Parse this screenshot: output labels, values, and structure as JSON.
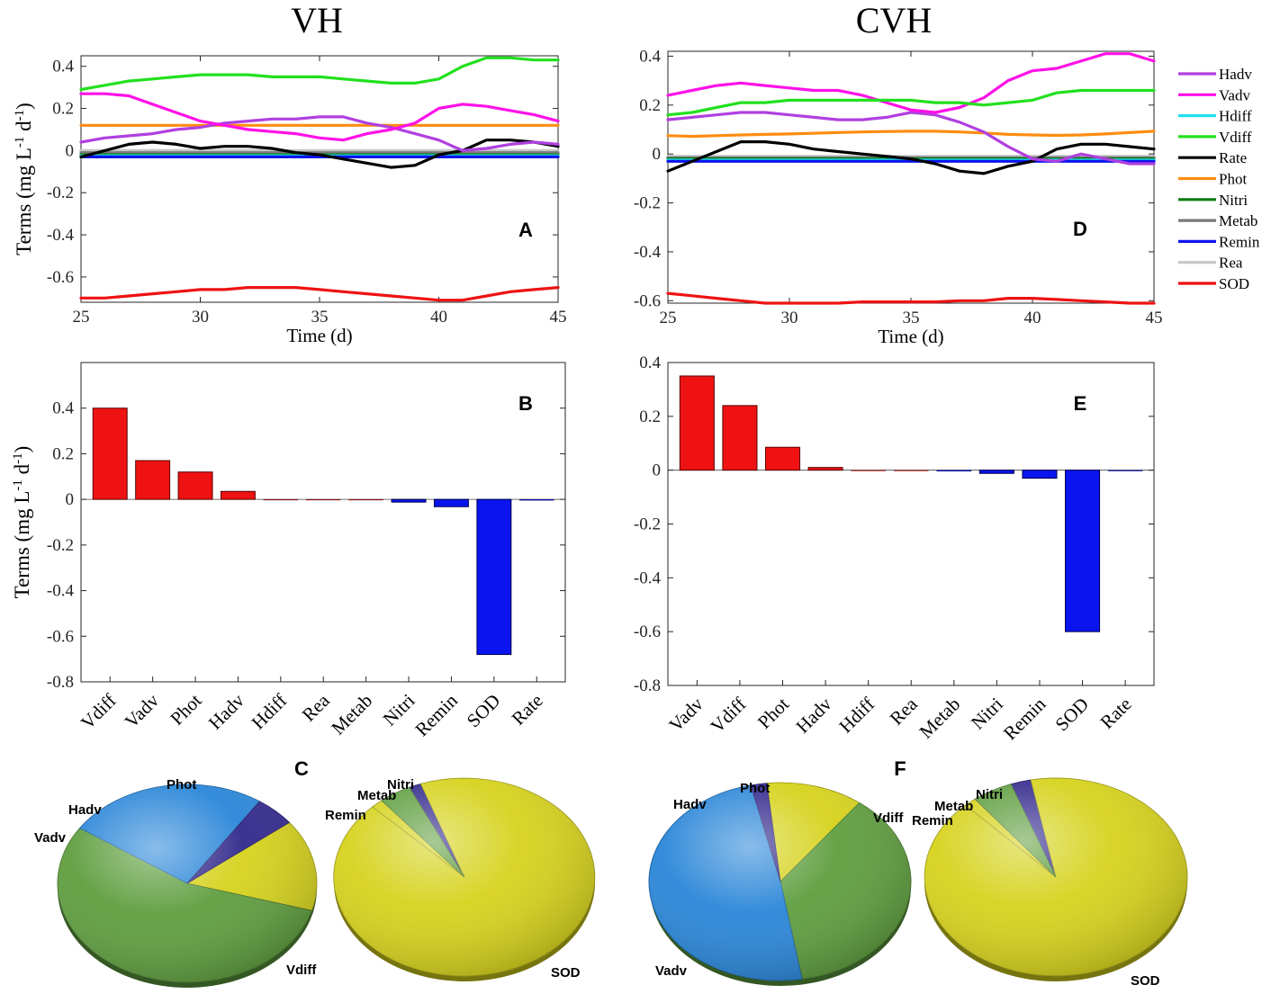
{
  "titles": {
    "left": "VH",
    "right": "CVH"
  },
  "panel_letters": {
    "A": "A",
    "B": "B",
    "C": "C",
    "D": "D",
    "E": "E",
    "F": "F"
  },
  "legend": {
    "items": [
      {
        "name": "Hadv",
        "color": "#b040e0"
      },
      {
        "name": "Vadv",
        "color": "#ff10e8"
      },
      {
        "name": "Hdiff",
        "color": "#22e0f0"
      },
      {
        "name": "Vdiff",
        "color": "#22e01e"
      },
      {
        "name": "Rate",
        "color": "#000000"
      },
      {
        "name": "Phot",
        "color": "#ff8c10"
      },
      {
        "name": "Nitri",
        "color": "#0a7d10"
      },
      {
        "name": "Metab",
        "color": "#7a7a7a"
      },
      {
        "name": "Remin",
        "color": "#0a14ee"
      },
      {
        "name": "Rea",
        "color": "#c6c6c6"
      },
      {
        "name": "SOD",
        "color": "#ee1212"
      }
    ]
  },
  "chart_data": [
    {
      "id": "A",
      "type": "line",
      "title": "",
      "xlabel": "Time (d)",
      "ylabel": "Terms (mg L-1 d-1)",
      "xlim": [
        25,
        45
      ],
      "ylim": [
        -0.72,
        0.45
      ],
      "xticks": [
        25,
        30,
        35,
        40,
        45
      ],
      "yticks": [
        0.4,
        0.2,
        0,
        -0.2,
        -0.4,
        -0.6
      ],
      "x": [
        25,
        26,
        27,
        28,
        29,
        30,
        31,
        32,
        33,
        34,
        35,
        36,
        37,
        38,
        39,
        40,
        41,
        42,
        43,
        44,
        45
      ],
      "series": [
        {
          "name": "Rea",
          "values": [
            0,
            0,
            0,
            0,
            0,
            0,
            0,
            0,
            0,
            0,
            0,
            0,
            0,
            0,
            0,
            0,
            0,
            0,
            0,
            0,
            0
          ]
        },
        {
          "name": "Metab",
          "values": [
            -0.01,
            -0.01,
            -0.01,
            -0.01,
            -0.01,
            -0.01,
            -0.01,
            -0.01,
            -0.01,
            -0.01,
            -0.01,
            -0.01,
            -0.01,
            -0.01,
            -0.01,
            -0.01,
            -0.01,
            -0.01,
            -0.01,
            -0.01,
            -0.01
          ]
        },
        {
          "name": "Nitri",
          "values": [
            -0.02,
            -0.02,
            -0.02,
            -0.02,
            -0.02,
            -0.02,
            -0.02,
            -0.02,
            -0.02,
            -0.02,
            -0.02,
            -0.02,
            -0.02,
            -0.02,
            -0.02,
            -0.02,
            -0.02,
            -0.02,
            -0.02,
            -0.02,
            -0.02
          ]
        },
        {
          "name": "Hdiff",
          "values": [
            -0.025,
            -0.025,
            -0.025,
            -0.025,
            -0.025,
            -0.025,
            -0.025,
            -0.025,
            -0.025,
            -0.025,
            -0.025,
            -0.025,
            -0.025,
            -0.025,
            -0.025,
            -0.025,
            -0.025,
            -0.025,
            -0.025,
            -0.025,
            -0.025
          ]
        },
        {
          "name": "Remin",
          "values": [
            -0.03,
            -0.03,
            -0.03,
            -0.03,
            -0.03,
            -0.03,
            -0.03,
            -0.03,
            -0.03,
            -0.03,
            -0.03,
            -0.03,
            -0.03,
            -0.03,
            -0.03,
            -0.03,
            -0.03,
            -0.03,
            -0.03,
            -0.03,
            -0.03
          ]
        },
        {
          "name": "Phot",
          "values": [
            0.12,
            0.12,
            0.12,
            0.12,
            0.12,
            0.12,
            0.12,
            0.12,
            0.12,
            0.12,
            0.12,
            0.12,
            0.12,
            0.12,
            0.12,
            0.12,
            0.12,
            0.12,
            0.12,
            0.12,
            0.12
          ]
        },
        {
          "name": "Rate",
          "values": [
            -0.03,
            0.0,
            0.03,
            0.04,
            0.03,
            0.01,
            0.02,
            0.02,
            0.01,
            -0.01,
            -0.02,
            -0.04,
            -0.06,
            -0.08,
            -0.07,
            -0.02,
            0.0,
            0.05,
            0.05,
            0.04,
            0.02
          ]
        },
        {
          "name": "Hadv",
          "values": [
            0.04,
            0.06,
            0.07,
            0.08,
            0.1,
            0.11,
            0.13,
            0.14,
            0.15,
            0.15,
            0.16,
            0.16,
            0.13,
            0.11,
            0.08,
            0.05,
            0.0,
            0.01,
            0.03,
            0.04,
            0.03
          ]
        },
        {
          "name": "Vadv",
          "values": [
            0.27,
            0.27,
            0.26,
            0.22,
            0.18,
            0.14,
            0.12,
            0.1,
            0.09,
            0.08,
            0.06,
            0.05,
            0.08,
            0.1,
            0.13,
            0.2,
            0.22,
            0.21,
            0.19,
            0.17,
            0.14
          ]
        },
        {
          "name": "Vdiff",
          "values": [
            0.29,
            0.31,
            0.33,
            0.34,
            0.35,
            0.36,
            0.36,
            0.36,
            0.35,
            0.35,
            0.35,
            0.34,
            0.33,
            0.32,
            0.32,
            0.34,
            0.4,
            0.44,
            0.44,
            0.43,
            0.43
          ]
        },
        {
          "name": "SOD",
          "values": [
            -0.7,
            -0.7,
            -0.69,
            -0.68,
            -0.67,
            -0.66,
            -0.66,
            -0.65,
            -0.65,
            -0.65,
            -0.66,
            -0.67,
            -0.68,
            -0.69,
            -0.7,
            -0.71,
            -0.71,
            -0.69,
            -0.67,
            -0.66,
            -0.65
          ]
        }
      ]
    },
    {
      "id": "B",
      "type": "bar",
      "title": "",
      "xlabel": "",
      "ylabel": "Terms (mg L-1 d-1)",
      "ylim": [
        -0.8,
        0.6
      ],
      "yticks": [
        0.4,
        0.2,
        0,
        -0.2,
        -0.4,
        -0.6,
        -0.8
      ],
      "categories": [
        "Vdiff",
        "Vadv",
        "Phot",
        "Hadv",
        "Hdiff",
        "Rea",
        "Metab",
        "Nitri",
        "Remin",
        "SOD",
        "Rate"
      ],
      "values": [
        0.4,
        0.17,
        0.12,
        0.035,
        0.0,
        0.0,
        0.0,
        -0.012,
        -0.032,
        -0.68,
        -0.004
      ],
      "positive_color": "#ee1212",
      "negative_color": "#0a14ee"
    },
    {
      "id": "C",
      "type": "pie",
      "title": "",
      "pies": [
        {
          "slices": [
            {
              "label": "Phot",
              "value": 15,
              "color": "#d6d21c"
            },
            {
              "label": "Vdiff",
              "value": 55,
              "color": "#5f9e3f"
            },
            {
              "label": "Vadv",
              "value": 25,
              "color": "#2a86d8"
            },
            {
              "label": "Hadv",
              "value": 5,
              "color": "#32288c"
            }
          ]
        },
        {
          "slices": [
            {
              "label": "Nitri",
              "value": 1.5,
              "color": "#32288c"
            },
            {
              "label": "SOD",
              "value": 93,
              "color": "#d6d21c"
            },
            {
              "label": "Remin",
              "value": 1.5,
              "color": "#d6d21c"
            },
            {
              "label": "Metab",
              "value": 4,
              "color": "#5f9e3f"
            }
          ]
        }
      ]
    },
    {
      "id": "D",
      "type": "line",
      "title": "",
      "xlabel": "Time (d)",
      "ylabel": "",
      "xlim": [
        25,
        45
      ],
      "ylim": [
        -0.61,
        0.42
      ],
      "xticks": [
        25,
        30,
        35,
        40,
        45
      ],
      "yticks": [
        0.4,
        0.2,
        0,
        -0.2,
        -0.4,
        -0.6
      ],
      "x": [
        25,
        26,
        27,
        28,
        29,
        30,
        31,
        32,
        33,
        34,
        35,
        36,
        37,
        38,
        39,
        40,
        41,
        42,
        43,
        44,
        45
      ],
      "series": [
        {
          "name": "Rea",
          "values": [
            -0.01,
            -0.01,
            -0.01,
            -0.01,
            -0.01,
            -0.01,
            -0.01,
            -0.01,
            -0.01,
            -0.01,
            -0.01,
            -0.01,
            -0.01,
            -0.01,
            -0.01,
            -0.01,
            -0.01,
            -0.01,
            -0.01,
            -0.01,
            -0.01
          ]
        },
        {
          "name": "Metab",
          "values": [
            -0.015,
            -0.015,
            -0.015,
            -0.015,
            -0.015,
            -0.015,
            -0.015,
            -0.015,
            -0.015,
            -0.015,
            -0.015,
            -0.015,
            -0.015,
            -0.015,
            -0.015,
            -0.015,
            -0.015,
            -0.015,
            -0.015,
            -0.015,
            -0.015
          ]
        },
        {
          "name": "Nitri",
          "values": [
            -0.02,
            -0.02,
            -0.02,
            -0.02,
            -0.02,
            -0.02,
            -0.02,
            -0.02,
            -0.02,
            -0.02,
            -0.02,
            -0.02,
            -0.02,
            -0.02,
            -0.02,
            -0.02,
            -0.02,
            -0.02,
            -0.02,
            -0.02,
            -0.02
          ]
        },
        {
          "name": "Hdiff",
          "values": [
            -0.025,
            -0.025,
            -0.025,
            -0.025,
            -0.025,
            -0.025,
            -0.025,
            -0.025,
            -0.025,
            -0.025,
            -0.025,
            -0.025,
            -0.025,
            -0.025,
            -0.025,
            -0.025,
            -0.025,
            -0.025,
            -0.025,
            -0.025,
            -0.025
          ]
        },
        {
          "name": "Remin",
          "values": [
            -0.03,
            -0.03,
            -0.03,
            -0.03,
            -0.03,
            -0.03,
            -0.03,
            -0.03,
            -0.03,
            -0.03,
            -0.03,
            -0.03,
            -0.03,
            -0.03,
            -0.03,
            -0.03,
            -0.03,
            -0.03,
            -0.03,
            -0.03,
            -0.03
          ]
        },
        {
          "name": "Phot",
          "values": [
            0.075,
            0.072,
            0.075,
            0.078,
            0.08,
            0.082,
            0.085,
            0.088,
            0.09,
            0.092,
            0.093,
            0.093,
            0.09,
            0.086,
            0.08,
            0.078,
            0.076,
            0.078,
            0.082,
            0.088,
            0.093
          ]
        },
        {
          "name": "Rate",
          "values": [
            -0.07,
            -0.03,
            0.01,
            0.05,
            0.05,
            0.04,
            0.02,
            0.01,
            0.0,
            -0.01,
            -0.02,
            -0.04,
            -0.07,
            -0.08,
            -0.05,
            -0.03,
            0.02,
            0.04,
            0.04,
            0.03,
            0.02
          ]
        },
        {
          "name": "Hadv",
          "values": [
            0.14,
            0.15,
            0.16,
            0.17,
            0.17,
            0.16,
            0.15,
            0.14,
            0.14,
            0.15,
            0.17,
            0.16,
            0.13,
            0.09,
            0.03,
            -0.02,
            -0.03,
            0.0,
            -0.02,
            -0.04,
            -0.04
          ]
        },
        {
          "name": "Vadv",
          "values": [
            0.24,
            0.26,
            0.28,
            0.29,
            0.28,
            0.27,
            0.26,
            0.26,
            0.24,
            0.21,
            0.18,
            0.17,
            0.19,
            0.23,
            0.3,
            0.34,
            0.35,
            0.38,
            0.41,
            0.41,
            0.38
          ]
        },
        {
          "name": "Vdiff",
          "values": [
            0.16,
            0.17,
            0.19,
            0.21,
            0.21,
            0.22,
            0.22,
            0.22,
            0.22,
            0.22,
            0.22,
            0.21,
            0.21,
            0.2,
            0.21,
            0.22,
            0.25,
            0.26,
            0.26,
            0.26,
            0.26
          ]
        },
        {
          "name": "SOD",
          "values": [
            -0.57,
            -0.58,
            -0.59,
            -0.6,
            -0.61,
            -0.61,
            -0.61,
            -0.61,
            -0.605,
            -0.605,
            -0.605,
            -0.605,
            -0.6,
            -0.6,
            -0.59,
            -0.59,
            -0.595,
            -0.6,
            -0.605,
            -0.61,
            -0.61
          ]
        }
      ]
    },
    {
      "id": "E",
      "type": "bar",
      "title": "",
      "xlabel": "",
      "ylabel": "",
      "ylim": [
        -0.8,
        0.4
      ],
      "yticks": [
        0.4,
        0.2,
        0,
        -0.2,
        -0.4,
        -0.6,
        -0.8
      ],
      "categories": [
        "Vadv",
        "Vdiff",
        "Phot",
        "Hadv",
        "Hdiff",
        "Rea",
        "Metab",
        "Nitri",
        "Remin",
        "SOD",
        "Rate"
      ],
      "values": [
        0.35,
        0.24,
        0.085,
        0.01,
        0.0,
        0.0,
        -0.004,
        -0.012,
        -0.03,
        -0.6,
        -0.003
      ],
      "positive_color": "#ee1212",
      "negative_color": "#0a14ee"
    },
    {
      "id": "F",
      "type": "pie",
      "title": "",
      "pies": [
        {
          "slices": [
            {
              "label": "Phot",
              "value": 12,
              "color": "#d6d21c"
            },
            {
              "label": "Vdiff",
              "value": 37,
              "color": "#5f9e3f"
            },
            {
              "label": "Vadv",
              "value": 49,
              "color": "#2a86d8"
            },
            {
              "label": "Hadv",
              "value": 2,
              "color": "#32288c"
            }
          ]
        },
        {
          "slices": [
            {
              "label": "Nitri",
              "value": 2.5,
              "color": "#32288c"
            },
            {
              "label": "SOD",
              "value": 91,
              "color": "#d6d21c"
            },
            {
              "label": "Remin",
              "value": 1.5,
              "color": "#d6d21c"
            },
            {
              "label": "Metab",
              "value": 5,
              "color": "#5f9e3f"
            }
          ]
        }
      ]
    }
  ]
}
